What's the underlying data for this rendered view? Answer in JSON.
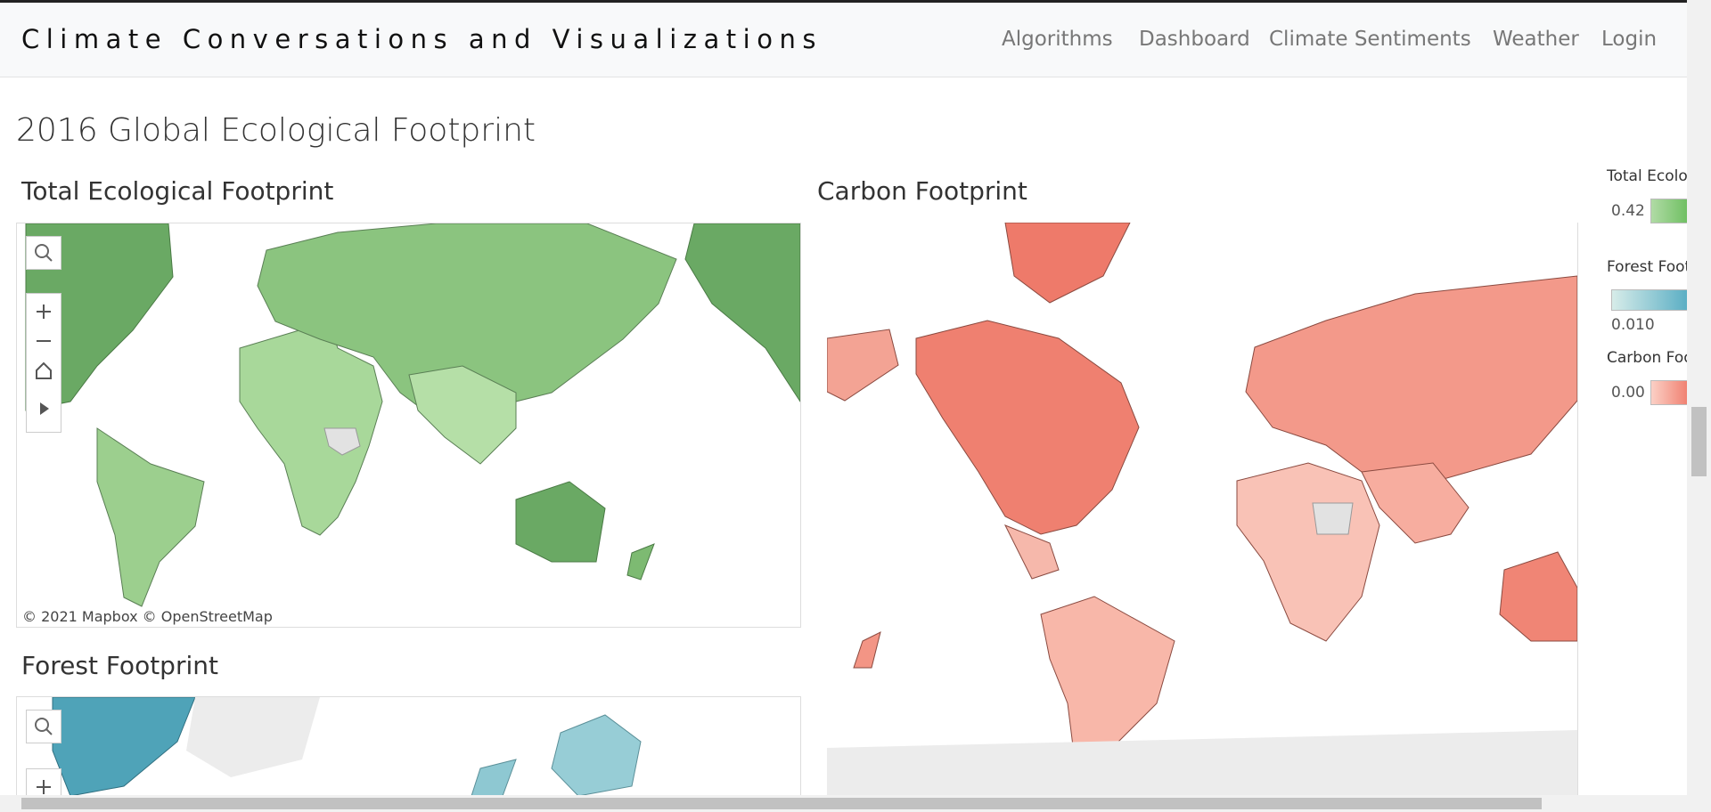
{
  "header": {
    "title": "Climate Conversations and Visualizations",
    "nav": [
      "Algorithms",
      "Dashboard",
      "Climate Sentiments",
      "Weather",
      "Login"
    ]
  },
  "page": {
    "heading": "2016 Global Ecological Footprint"
  },
  "panels": [
    {
      "title": "Total Ecological Footprint",
      "attribution": "© 2021 Mapbox © OpenStreetMap"
    },
    {
      "title": "Carbon Footprint"
    },
    {
      "title": "Forest Footprint"
    }
  ],
  "legend": [
    {
      "title": "Total Ecolo",
      "value": "0.42"
    },
    {
      "title": "Forest Foot",
      "value": "0.010"
    },
    {
      "title": "Carbon Foo",
      "value": "0.00"
    }
  ]
}
